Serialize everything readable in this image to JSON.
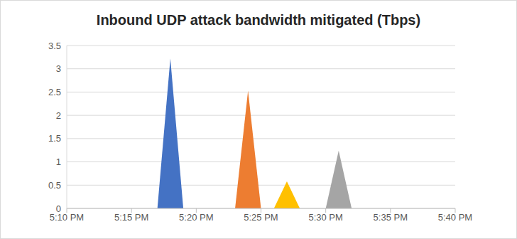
{
  "chart_data": {
    "type": "area",
    "title": "Inbound UDP attack bandwidth mitigated (Tbps)",
    "x": [
      1037,
      1038,
      1039,
      1043,
      1044,
      1045,
      1046,
      1047,
      1048,
      1050,
      1051,
      1052
    ],
    "series": [
      {
        "color": "#4472c4",
        "values": [
          0,
          3.22,
          0,
          null,
          null,
          null,
          null,
          null,
          null,
          null,
          null,
          null
        ]
      },
      {
        "color": "#ed7d31",
        "values": [
          null,
          null,
          null,
          0,
          2.53,
          0,
          null,
          null,
          null,
          null,
          null,
          null
        ]
      },
      {
        "color": "#ffc000",
        "values": [
          null,
          null,
          null,
          null,
          null,
          null,
          0,
          0.58,
          0,
          null,
          null,
          null
        ]
      },
      {
        "color": "#a5a5a5",
        "values": [
          null,
          null,
          null,
          null,
          null,
          null,
          null,
          null,
          null,
          0,
          1.24,
          0
        ]
      }
    ],
    "xlim": [
      1030,
      1060
    ],
    "xticks": [
      {
        "value": 1030,
        "label": "5:10 PM"
      },
      {
        "value": 1035,
        "label": "5:15 PM"
      },
      {
        "value": 1040,
        "label": "5:20 PM"
      },
      {
        "value": 1045,
        "label": "5:25 PM"
      },
      {
        "value": 1050,
        "label": "5:30 PM"
      },
      {
        "value": 1055,
        "label": "5:35 PM"
      },
      {
        "value": 1060,
        "label": "5:40 PM"
      }
    ],
    "ylim": [
      0,
      3.5
    ],
    "yticks": [
      0,
      0.5,
      1,
      1.5,
      2,
      2.5,
      3,
      3.5
    ],
    "grid": true
  }
}
